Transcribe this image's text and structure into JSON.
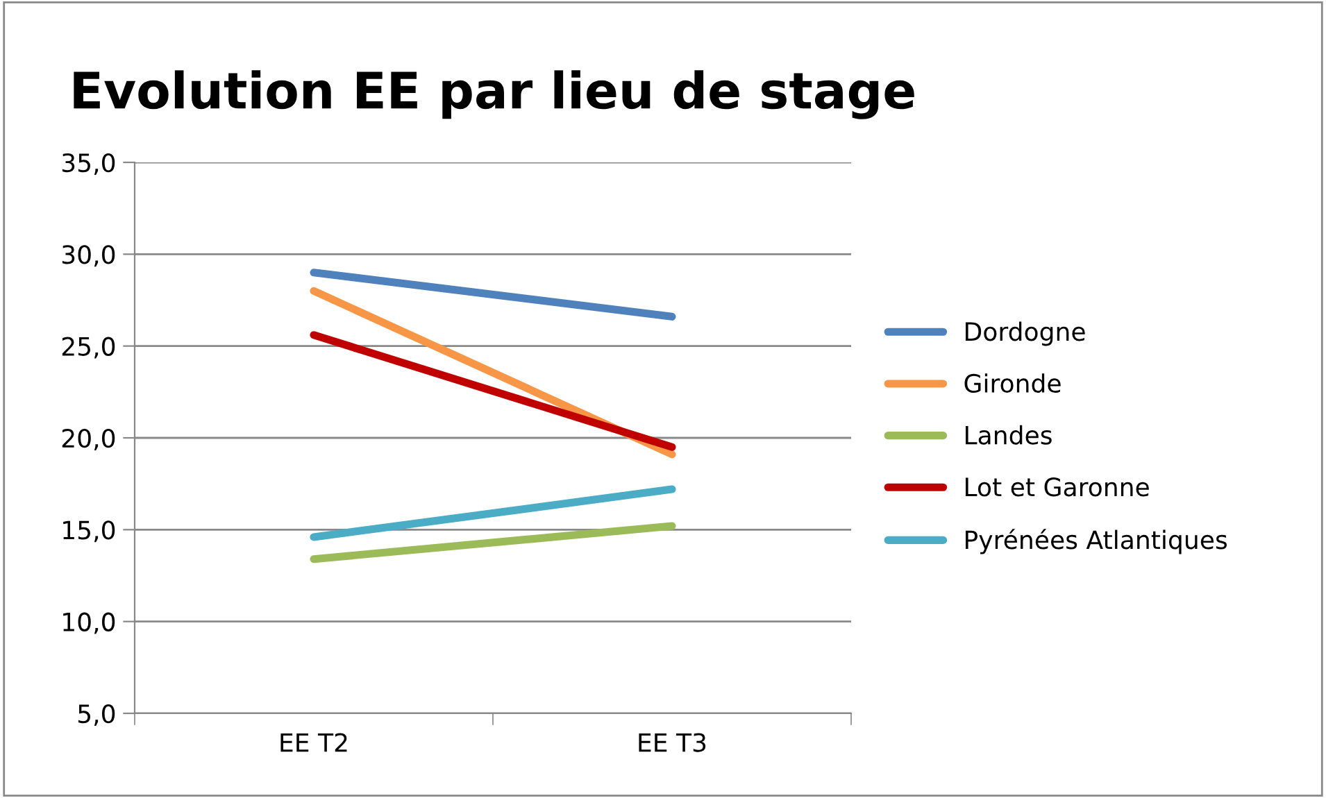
{
  "chart_data": {
    "type": "line",
    "title": "Evolution EE par lieu de stage",
    "categories": [
      "EE T2",
      "EE T3"
    ],
    "series": [
      {
        "name": "Dordogne",
        "color": "#4f81bd",
        "values": [
          29.0,
          26.6
        ]
      },
      {
        "name": "Gironde",
        "color": "#f79646",
        "values": [
          28.0,
          19.1
        ]
      },
      {
        "name": "Landes",
        "color": "#9bbb59",
        "values": [
          13.4,
          15.2
        ]
      },
      {
        "name": "Lot et Garonne",
        "color": "#c00000",
        "values": [
          25.6,
          19.5
        ]
      },
      {
        "name": "Pyrénées Atlantiques",
        "color": "#4bacc6",
        "values": [
          14.6,
          17.2
        ]
      }
    ],
    "ylim": [
      5,
      35
    ],
    "yticks": [
      {
        "value": 5,
        "label": "5,0"
      },
      {
        "value": 10,
        "label": "10,0"
      },
      {
        "value": 15,
        "label": "15,0"
      },
      {
        "value": 20,
        "label": "20,0"
      },
      {
        "value": 25,
        "label": "25,0"
      },
      {
        "value": 30,
        "label": "30,0"
      },
      {
        "value": 35,
        "label": "35,0"
      }
    ],
    "grid": "y",
    "legend": "right",
    "marker": "none",
    "line_style": "solid"
  }
}
